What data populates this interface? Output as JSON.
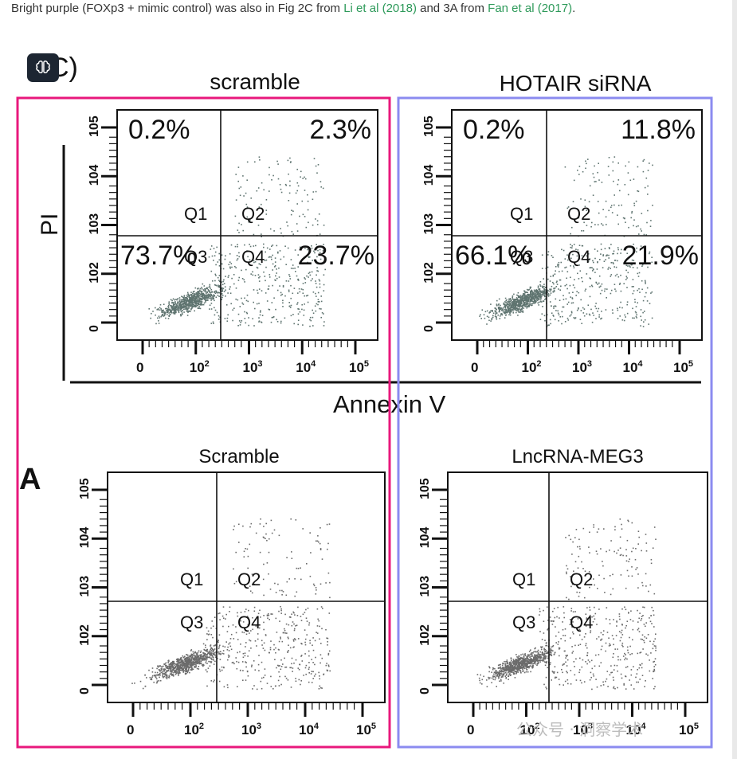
{
  "caption": {
    "text_a": "Bright purple (FOXp3 + mimic control) was also in Fig 2C from ",
    "link_1": "Li et al (2018)",
    "text_b": " and 3A from ",
    "link_2": "Fan et al (2017)",
    "text_c": "."
  },
  "figure": {
    "top_panel_label": "C)",
    "bottom_panel_label": "A",
    "y_axis_label": "PI",
    "x_axis_label": "Annexin V",
    "plots": [
      {
        "title": "scramble",
        "q_ul": "0.2%",
        "q_ur": "2.3%",
        "q_ll": "73.7%",
        "q_lr": "23.7%"
      },
      {
        "title": "HOTAIR siRNA",
        "q_ul": "0.2%",
        "q_ur": "11.8%",
        "q_ll": "66.1%",
        "q_lr": "21.9%"
      },
      {
        "title": "Scramble"
      },
      {
        "title": "LncRNA-MEG3"
      }
    ],
    "quadrant_names": [
      "Q1",
      "Q2",
      "Q3",
      "Q4"
    ],
    "x_ticks": [
      "0",
      "10",
      "10",
      "10",
      "10"
    ],
    "x_tick_exps": [
      "",
      "2",
      "3",
      "4",
      "5"
    ],
    "y_ticks": [
      "0",
      "10",
      "10",
      "10",
      "10"
    ],
    "y_tick_exps": [
      "",
      "2",
      "3",
      "4",
      "5"
    ],
    "highlight_colors": {
      "left": "#e8187c",
      "right": "#8b8bf0"
    }
  },
  "watermark": "公众号 · 洞察学术"
}
